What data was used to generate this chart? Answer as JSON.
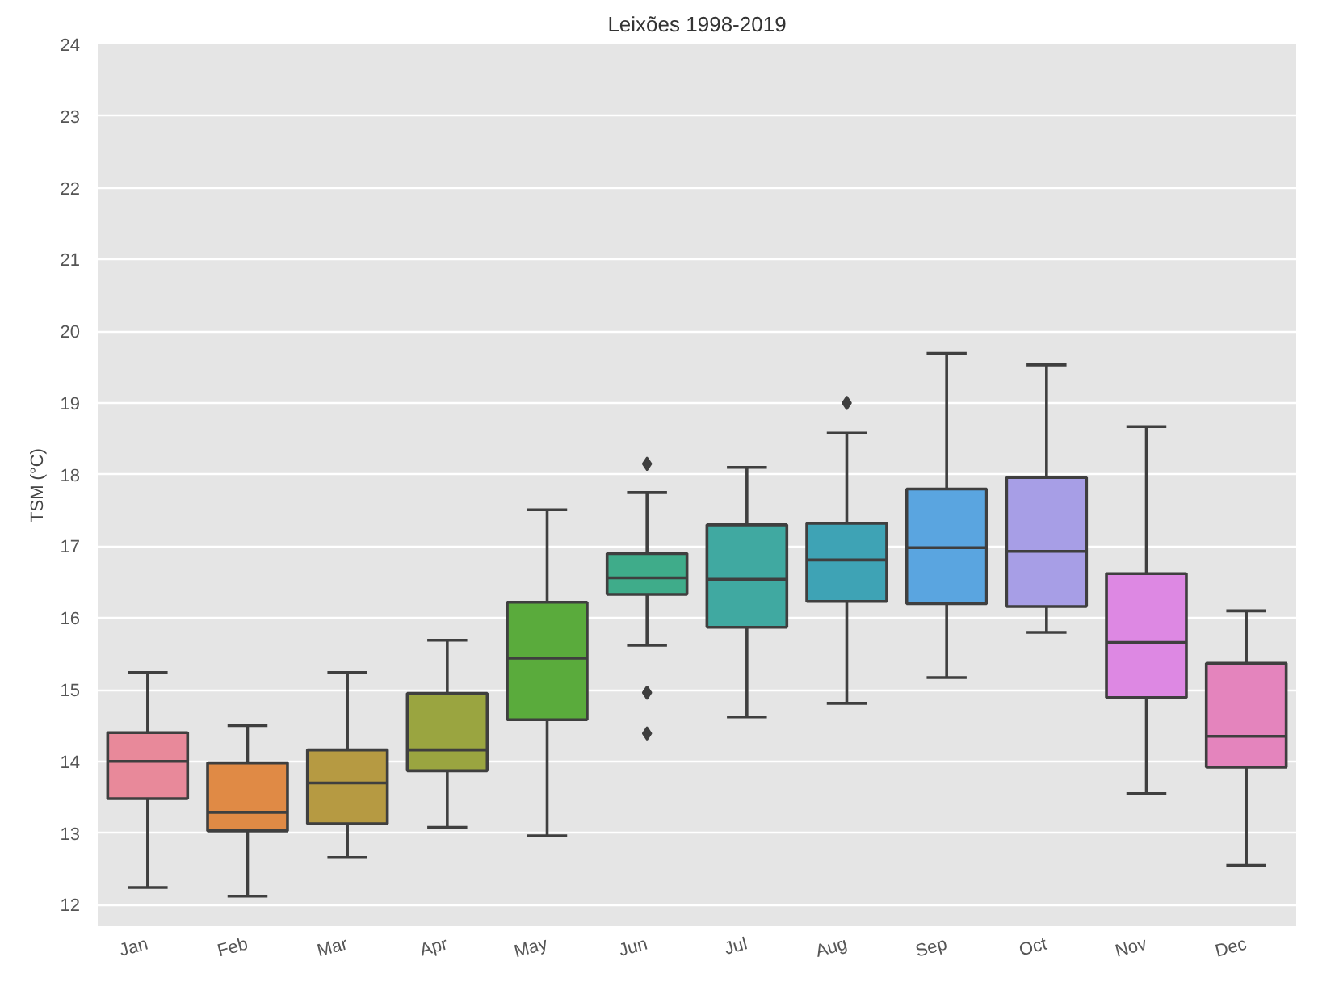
{
  "chart_data": {
    "type": "box",
    "title": "Leixões 1998-2019",
    "ylabel": "TSM (°C)",
    "categories": [
      "Jan",
      "Feb",
      "Mar",
      "Apr",
      "May",
      "Jun",
      "Jul",
      "Aug",
      "Sep",
      "Oct",
      "Nov",
      "Dec"
    ],
    "colors": [
      "#e8899a",
      "#e08a45",
      "#b69a42",
      "#9aa540",
      "#5aab3c",
      "#3fac8a",
      "#40a9a1",
      "#3ea3b5",
      "#5aa5e0",
      "#a79ee6",
      "#dd88e3",
      "#e484bd"
    ],
    "boxes": [
      {
        "low": 12.24,
        "q1": 13.48,
        "median": 14.0,
        "q3": 14.4,
        "high": 15.24
      },
      {
        "low": 12.12,
        "q1": 13.03,
        "median": 13.29,
        "q3": 13.98,
        "high": 14.5
      },
      {
        "low": 12.66,
        "q1": 13.13,
        "median": 13.7,
        "q3": 14.16,
        "high": 15.24
      },
      {
        "low": 13.08,
        "q1": 13.87,
        "median": 14.16,
        "q3": 14.95,
        "high": 15.69
      },
      {
        "low": 12.96,
        "q1": 14.58,
        "median": 15.44,
        "q3": 16.22,
        "high": 17.51
      },
      {
        "low": 15.62,
        "q1": 16.33,
        "median": 16.56,
        "q3": 16.9,
        "high": 17.75,
        "outliers": [
          18.15,
          14.96,
          14.39
        ]
      },
      {
        "low": 14.62,
        "q1": 15.87,
        "median": 16.54,
        "q3": 17.3,
        "high": 18.1
      },
      {
        "low": 14.81,
        "q1": 16.23,
        "median": 16.81,
        "q3": 17.32,
        "high": 18.58,
        "outliers": [
          19.0
        ]
      },
      {
        "low": 15.17,
        "q1": 16.2,
        "median": 16.98,
        "q3": 17.8,
        "high": 19.69
      },
      {
        "low": 15.8,
        "q1": 16.16,
        "median": 16.93,
        "q3": 17.96,
        "high": 19.53
      },
      {
        "low": 13.55,
        "q1": 14.89,
        "median": 15.66,
        "q3": 16.62,
        "high": 18.67
      },
      {
        "low": 12.55,
        "q1": 13.92,
        "median": 14.35,
        "q3": 15.37,
        "high": 16.1
      }
    ],
    "ylim": [
      11.7,
      24
    ],
    "yticks": [
      12,
      13,
      14,
      15,
      16,
      17,
      18,
      19,
      20,
      21,
      22,
      23,
      24
    ],
    "grid": "y",
    "marker": "diamond"
  }
}
